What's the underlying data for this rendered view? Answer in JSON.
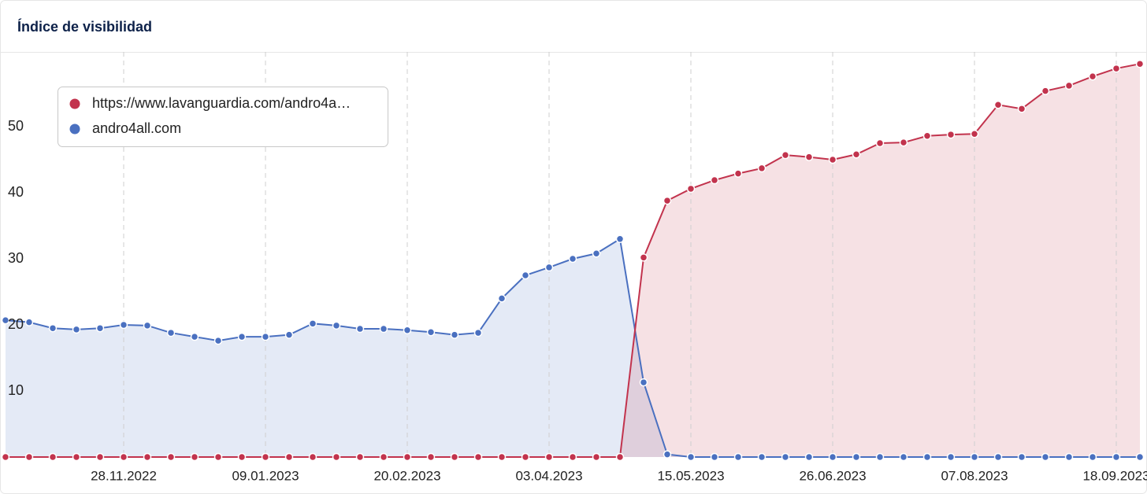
{
  "chart_data": {
    "type": "area",
    "title": "Índice de visibilidad",
    "categories": [
      null,
      null,
      null,
      null,
      null,
      "28.11.2022",
      null,
      null,
      null,
      null,
      null,
      "09.01.2023",
      null,
      null,
      null,
      null,
      null,
      "20.02.2023",
      null,
      null,
      null,
      null,
      null,
      "03.04.2023",
      null,
      null,
      null,
      null,
      null,
      "15.05.2023",
      null,
      null,
      null,
      null,
      null,
      "26.06.2023",
      null,
      null,
      null,
      null,
      null,
      "07.08.2023",
      null,
      null,
      null,
      null,
      null,
      "18.09.2023",
      null
    ],
    "series": [
      {
        "name": "https://www.lavanguardia.com/andro4a…",
        "color": "#c2334d",
        "values": [
          0,
          0,
          0,
          0,
          0,
          0,
          0,
          0,
          0,
          0,
          0,
          0,
          0,
          0,
          0,
          0,
          0,
          0,
          0,
          0,
          0,
          0,
          0,
          0,
          0,
          0,
          0,
          30.2,
          38.8,
          40.6,
          41.9,
          42.9,
          43.7,
          45.7,
          45.4,
          45.0,
          45.8,
          47.5,
          47.6,
          48.6,
          48.8,
          48.9,
          53.3,
          52.7,
          55.4,
          56.2,
          57.6,
          58.8,
          59.5
        ]
      },
      {
        "name": "andro4all.com",
        "color": "#4a70c0",
        "values": [
          20.7,
          20.4,
          19.5,
          19.3,
          19.5,
          20.0,
          19.9,
          18.8,
          18.2,
          17.6,
          18.2,
          18.2,
          18.5,
          20.2,
          19.9,
          19.4,
          19.4,
          19.2,
          18.9,
          18.5,
          18.8,
          24.0,
          27.5,
          28.7,
          30.0,
          30.8,
          33.0,
          11.3,
          0.4,
          0,
          0,
          0,
          0,
          0,
          0,
          0,
          0,
          0,
          0,
          0,
          0,
          0,
          0,
          0,
          0,
          0,
          0,
          0,
          0
        ]
      }
    ],
    "ylim": [
      0,
      61
    ],
    "yticks": [
      10,
      20,
      30,
      40,
      50
    ],
    "grid": true,
    "legend": "top-left"
  }
}
